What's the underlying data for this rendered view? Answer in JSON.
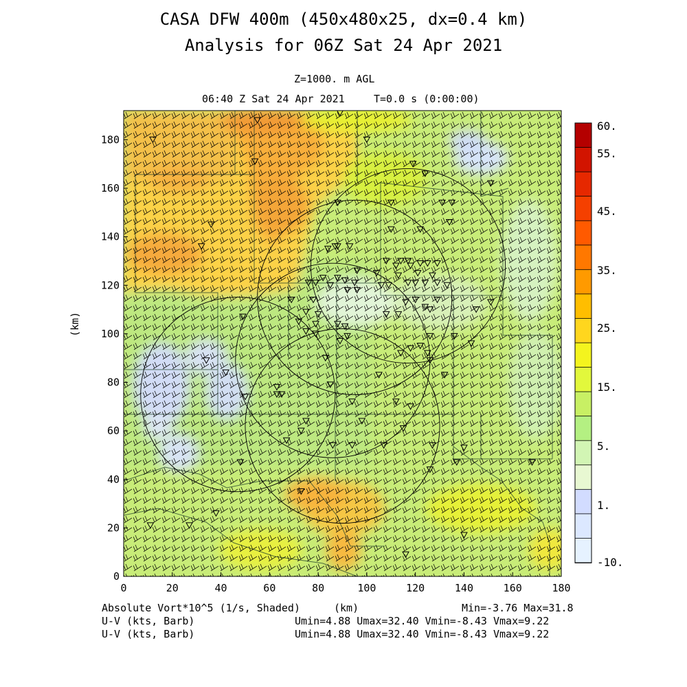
{
  "title": {
    "line1": "CASA DFW 400m (450x480x25, dx=0.4 km)",
    "line2": "Analysis for 06Z Sat 24 Apr 2021"
  },
  "subtitle": {
    "level": "Z=1000. m AGL",
    "time": "06:40 Z Sat 24 Apr 2021",
    "tstep": "T=0.0 s (0:00:00)"
  },
  "axes": {
    "x_label": "(km)",
    "y_label": "(km)",
    "x_ticks": [
      "0",
      "20",
      "40",
      "60",
      "80",
      "100",
      "120",
      "140",
      "160",
      "180"
    ],
    "y_ticks": [
      "0",
      "20",
      "40",
      "60",
      "80",
      "100",
      "120",
      "140",
      "160",
      "180"
    ],
    "xlim": [
      0,
      180
    ],
    "ylim": [
      0,
      192
    ]
  },
  "colorbar": {
    "labels": [
      "60.",
      "55.",
      "45.",
      "35.",
      "25.",
      "15.",
      "5.",
      "1.",
      "-10."
    ],
    "colors": [
      "#b40000",
      "#d21400",
      "#e62800",
      "#f54000",
      "#ff5a00",
      "#ff7800",
      "#ff9a00",
      "#ffbe00",
      "#ffd61e",
      "#f4f41e",
      "#e2f83c",
      "#c8f064",
      "#b4f082",
      "#d2f5b4",
      "#e8f8d2",
      "#d2dcff",
      "#dce8ff",
      "#e6f2ff"
    ]
  },
  "footer": {
    "left1": "Absolute Vort*10^5 (1/s, Shaded)",
    "left2": "U-V (kts, Barb)",
    "left3": "U-V (kts, Barb)",
    "center": "(km)",
    "minmax": "Min=-3.76 Max=31.8",
    "uv1": "Umin=4.88 Umax=32.40 Vmin=-8.43 Vmax=9.22",
    "uv2": "Umin=4.88 Umax=32.40 Vmin=-8.43 Vmax=9.22"
  },
  "radars": [
    {
      "x": 47,
      "y": 75,
      "r": 40
    },
    {
      "x": 90,
      "y": 62,
      "r": 40
    },
    {
      "x": 86,
      "y": 89,
      "r": 40
    },
    {
      "x": 95,
      "y": 115,
      "r": 40
    },
    {
      "x": 117,
      "y": 128,
      "r": 40
    }
  ],
  "stations": [
    [
      55,
      188
    ],
    [
      89,
      191
    ],
    [
      12,
      180
    ],
    [
      54,
      171
    ],
    [
      100,
      180
    ],
    [
      119,
      170
    ],
    [
      124,
      166
    ],
    [
      151,
      162
    ],
    [
      131,
      154
    ],
    [
      135,
      154
    ],
    [
      110,
      154
    ],
    [
      88,
      154
    ],
    [
      134,
      146
    ],
    [
      36,
      145
    ],
    [
      110,
      143
    ],
    [
      122,
      143
    ],
    [
      32,
      136
    ],
    [
      87,
      136
    ],
    [
      88,
      136
    ],
    [
      93,
      136
    ],
    [
      84,
      135
    ],
    [
      108,
      130
    ],
    [
      114,
      130
    ],
    [
      117,
      130
    ],
    [
      122,
      129
    ],
    [
      112,
      128
    ],
    [
      118,
      128
    ],
    [
      125,
      129
    ],
    [
      129,
      129
    ],
    [
      96,
      126
    ],
    [
      104,
      125
    ],
    [
      121,
      125
    ],
    [
      113,
      124
    ],
    [
      127,
      124
    ],
    [
      82,
      123
    ],
    [
      88,
      123
    ],
    [
      91,
      122
    ],
    [
      95,
      121
    ],
    [
      76,
      121
    ],
    [
      79,
      121
    ],
    [
      85,
      120
    ],
    [
      106,
      120
    ],
    [
      109,
      120
    ],
    [
      117,
      121
    ],
    [
      120,
      121
    ],
    [
      124,
      121
    ],
    [
      129,
      121
    ],
    [
      133,
      120
    ],
    [
      92,
      118
    ],
    [
      96,
      118
    ],
    [
      69,
      114
    ],
    [
      78,
      114
    ],
    [
      129,
      114
    ],
    [
      116,
      113
    ],
    [
      120,
      114
    ],
    [
      151,
      113
    ],
    [
      124,
      111
    ],
    [
      75,
      109
    ],
    [
      80,
      108
    ],
    [
      108,
      108
    ],
    [
      113,
      108
    ],
    [
      126,
      110
    ],
    [
      145,
      110
    ],
    [
      49,
      107
    ],
    [
      72,
      105
    ],
    [
      79,
      104
    ],
    [
      88,
      104
    ],
    [
      91,
      103
    ],
    [
      75,
      101
    ],
    [
      79,
      100
    ],
    [
      92,
      99
    ],
    [
      126,
      99
    ],
    [
      136,
      99
    ],
    [
      89,
      97
    ],
    [
      122,
      95
    ],
    [
      143,
      96
    ],
    [
      118,
      94
    ],
    [
      114,
      92
    ],
    [
      125,
      92
    ],
    [
      83,
      90
    ],
    [
      126,
      89
    ],
    [
      34,
      89
    ],
    [
      42,
      84
    ],
    [
      105,
      83
    ],
    [
      132,
      83
    ],
    [
      85,
      79
    ],
    [
      63,
      78
    ],
    [
      63,
      75
    ],
    [
      65,
      75
    ],
    [
      50,
      74
    ],
    [
      94,
      72
    ],
    [
      112,
      72
    ],
    [
      118,
      70
    ],
    [
      98,
      64
    ],
    [
      75,
      64
    ],
    [
      115,
      61
    ],
    [
      73,
      60
    ],
    [
      67,
      56
    ],
    [
      86,
      54
    ],
    [
      94,
      54
    ],
    [
      107,
      54
    ],
    [
      127,
      54
    ],
    [
      140,
      53
    ],
    [
      48,
      47
    ],
    [
      137,
      47
    ],
    [
      168,
      47
    ],
    [
      126,
      44
    ],
    [
      73,
      35
    ],
    [
      38,
      26
    ],
    [
      11,
      21
    ],
    [
      27,
      21
    ],
    [
      140,
      17
    ],
    [
      116,
      9
    ]
  ]
}
